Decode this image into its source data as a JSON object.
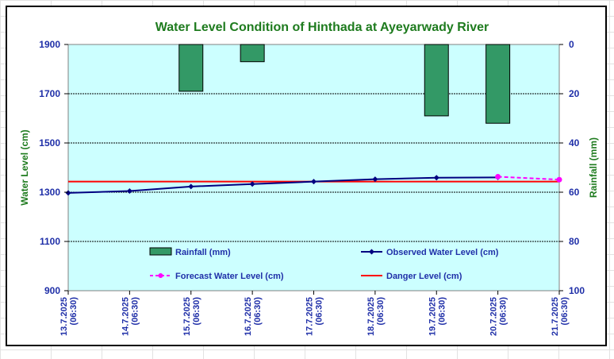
{
  "chart_data": {
    "type": "bar+line",
    "title": "Water Level Condition of Hinthada at Ayeyarwady River",
    "ylabel_left": "Water Level (cm)",
    "ylabel_right": "Rainfall (mm)",
    "y_left": {
      "min": 900,
      "max": 1900,
      "ticks": [
        900,
        1100,
        1300,
        1500,
        1700,
        1900
      ]
    },
    "y_right": {
      "min": 0,
      "max": 100,
      "inverted": true,
      "ticks": [
        0,
        20,
        40,
        60,
        80,
        100
      ]
    },
    "categories": [
      [
        "13.7.2025",
        "(06:30)"
      ],
      [
        "14.7.2025",
        "(06:30)"
      ],
      [
        "15.7.2025",
        "(06:30)"
      ],
      [
        "16.7.2025",
        "(06:30)"
      ],
      [
        "17.7.2025",
        "(06:30)"
      ],
      [
        "18.7.2025",
        "(06:30)"
      ],
      [
        "19.7.2025",
        "(06:30)"
      ],
      [
        "20.7.2025",
        "(06:30)"
      ],
      [
        "21.7.2025",
        "(06:30)"
      ]
    ],
    "grid": "horizontal",
    "plot_background": "#ccffff",
    "series": [
      {
        "name": "Rainfall (mm)",
        "type": "bar",
        "axis": "right",
        "color": "#339966",
        "points": [
          {
            "x": "15.7.2025",
            "value": 19
          },
          {
            "x": "16.7.2025",
            "value": 7
          },
          {
            "x": "19.7.2025",
            "value": 29
          },
          {
            "x": "20.7.2025",
            "value": 32
          }
        ]
      },
      {
        "name": "Observed Water Level (cm)",
        "type": "line",
        "axis": "left",
        "color": "#000080",
        "values": [
          1297,
          1305,
          1323,
          1333,
          1343,
          1353,
          1359,
          1360,
          null
        ]
      },
      {
        "name": "Forecast Water Level (cm)",
        "type": "line",
        "axis": "left",
        "color": "#ff00ff",
        "dashed": true,
        "values": [
          null,
          null,
          null,
          null,
          null,
          null,
          null,
          1363,
          1351
        ]
      },
      {
        "name": "Danger Level (cm)",
        "type": "line",
        "axis": "left",
        "color": "#ff0000",
        "value": 1343
      }
    ],
    "legend": [
      {
        "label": "Rainfall (mm)",
        "kind": "box",
        "color": "#339966"
      },
      {
        "label": "Observed Water Level (cm)",
        "kind": "line-marker",
        "color": "#000080"
      },
      {
        "label": "Forecast Water Level (cm)",
        "kind": "dashed-marker",
        "color": "#ff00ff"
      },
      {
        "label": "Danger Level (cm)",
        "kind": "line",
        "color": "#ff0000"
      }
    ]
  }
}
